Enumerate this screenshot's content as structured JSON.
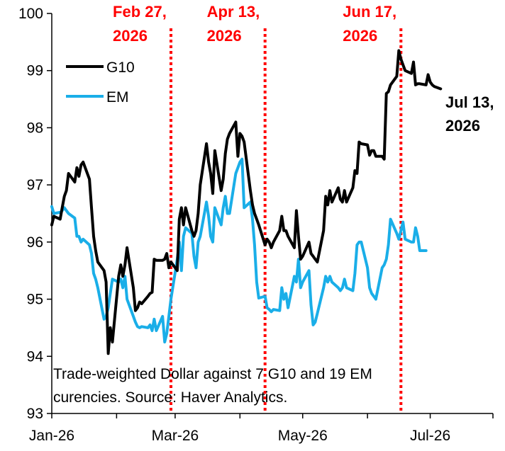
{
  "chart_data": {
    "type": "line",
    "title": "",
    "xlabel": "",
    "ylabel": "",
    "ylim": [
      93,
      100
    ],
    "xlim": [
      "2026-01-01",
      "2026-07-31"
    ],
    "y_ticks": [
      93,
      94,
      95,
      96,
      97,
      98,
      99,
      100
    ],
    "x_ticks": [
      {
        "date": "2026-01-01",
        "label": "Jan-26"
      },
      {
        "date": "2026-03-01",
        "label": "Mar-26"
      },
      {
        "date": "2026-05-01",
        "label": "May-26"
      },
      {
        "date": "2026-07-01",
        "label": "Jul-26"
      }
    ],
    "grid": false,
    "legend_position": "top-left",
    "colors": {
      "G10": "#000000",
      "EM": "#1aaee8",
      "event_line": "#ff0000"
    },
    "series": [
      {
        "name": "G10",
        "color": "#000000",
        "points": [
          [
            "2026-01-01",
            96.3
          ],
          [
            "2026-01-02",
            96.45
          ],
          [
            "2026-01-05",
            96.4
          ],
          [
            "2026-01-06",
            96.6
          ],
          [
            "2026-01-07",
            96.8
          ],
          [
            "2026-01-08",
            96.9
          ],
          [
            "2026-01-09",
            97.2
          ],
          [
            "2026-01-12",
            97.05
          ],
          [
            "2026-01-13",
            97.3
          ],
          [
            "2026-01-14",
            97.15
          ],
          [
            "2026-01-15",
            97.35
          ],
          [
            "2026-01-16",
            97.4
          ],
          [
            "2026-01-19",
            97.1
          ],
          [
            "2026-01-20",
            96.6
          ],
          [
            "2026-01-21",
            96.1
          ],
          [
            "2026-01-22",
            95.85
          ],
          [
            "2026-01-23",
            95.65
          ],
          [
            "2026-01-26",
            95.5
          ],
          [
            "2026-01-27",
            95.3
          ],
          [
            "2026-01-28",
            94.05
          ],
          [
            "2026-01-29",
            94.5
          ],
          [
            "2026-01-30",
            94.25
          ],
          [
            "2026-02-02",
            95.4
          ],
          [
            "2026-02-03",
            95.6
          ],
          [
            "2026-02-04",
            95.4
          ],
          [
            "2026-02-05",
            95.6
          ],
          [
            "2026-02-06",
            95.9
          ],
          [
            "2026-02-09",
            95.2
          ],
          [
            "2026-02-10",
            94.8
          ],
          [
            "2026-02-11",
            94.85
          ],
          [
            "2026-02-12",
            94.95
          ],
          [
            "2026-02-13",
            94.92
          ],
          [
            "2026-02-16",
            95.05
          ],
          [
            "2026-02-17",
            95.1
          ],
          [
            "2026-02-18",
            95.12
          ],
          [
            "2026-02-19",
            95.7
          ],
          [
            "2026-02-20",
            95.68
          ],
          [
            "2026-02-23",
            95.68
          ],
          [
            "2026-02-24",
            95.7
          ],
          [
            "2026-02-25",
            95.8
          ],
          [
            "2026-02-26",
            95.55
          ],
          [
            "2026-02-27",
            95.65
          ],
          [
            "2026-03-02",
            95.5
          ],
          [
            "2026-03-03",
            96.4
          ],
          [
            "2026-03-04",
            96.6
          ],
          [
            "2026-03-05",
            96.3
          ],
          [
            "2026-03-06",
            96.6
          ],
          [
            "2026-03-09",
            96.2
          ],
          [
            "2026-03-10",
            96.1
          ],
          [
            "2026-03-11",
            96.2
          ],
          [
            "2026-03-12",
            96.5
          ],
          [
            "2026-03-13",
            97.0
          ],
          [
            "2026-03-16",
            97.72
          ],
          [
            "2026-03-17",
            97.4
          ],
          [
            "2026-03-18",
            97.2
          ],
          [
            "2026-03-19",
            96.85
          ],
          [
            "2026-03-20",
            97.6
          ],
          [
            "2026-03-23",
            96.9
          ],
          [
            "2026-03-24",
            97.1
          ],
          [
            "2026-03-25",
            97.55
          ],
          [
            "2026-03-26",
            97.8
          ],
          [
            "2026-03-27",
            97.9
          ],
          [
            "2026-03-30",
            98.1
          ],
          [
            "2026-03-31",
            97.5
          ],
          [
            "2026-04-01",
            97.9
          ],
          [
            "2026-04-02",
            97.85
          ],
          [
            "2026-04-03",
            97.75
          ],
          [
            "2026-04-06",
            96.9
          ],
          [
            "2026-04-07",
            96.65
          ],
          [
            "2026-04-08",
            96.5
          ],
          [
            "2026-04-09",
            96.4
          ],
          [
            "2026-04-10",
            96.3
          ],
          [
            "2026-04-13",
            95.95
          ],
          [
            "2026-04-14",
            96.05
          ],
          [
            "2026-04-15",
            96.0
          ],
          [
            "2026-04-16",
            95.9
          ],
          [
            "2026-04-17",
            96.0
          ],
          [
            "2026-04-20",
            96.2
          ],
          [
            "2026-04-21",
            96.45
          ],
          [
            "2026-04-22",
            96.2
          ],
          [
            "2026-04-23",
            96.2
          ],
          [
            "2026-04-24",
            96.1
          ],
          [
            "2026-04-27",
            95.9
          ],
          [
            "2026-04-28",
            96.55
          ],
          [
            "2026-04-29",
            96.1
          ],
          [
            "2026-04-30",
            95.7
          ],
          [
            "2026-05-01",
            95.75
          ],
          [
            "2026-05-04",
            96.0
          ],
          [
            "2026-05-05",
            95.8
          ],
          [
            "2026-05-06",
            95.75
          ],
          [
            "2026-05-07",
            95.7
          ],
          [
            "2026-05-08",
            95.65
          ],
          [
            "2026-05-11",
            96.2
          ],
          [
            "2026-05-12",
            96.8
          ],
          [
            "2026-05-13",
            96.65
          ],
          [
            "2026-05-14",
            96.9
          ],
          [
            "2026-05-15",
            96.7
          ],
          [
            "2026-05-18",
            96.95
          ],
          [
            "2026-05-19",
            96.75
          ],
          [
            "2026-05-20",
            96.7
          ],
          [
            "2026-05-21",
            96.9
          ],
          [
            "2026-05-22",
            96.7
          ],
          [
            "2026-05-25",
            96.95
          ],
          [
            "2026-05-26",
            97.25
          ],
          [
            "2026-05-27",
            97.2
          ],
          [
            "2026-05-28",
            97.75
          ],
          [
            "2026-05-29",
            97.72
          ],
          [
            "2026-06-01",
            97.7
          ],
          [
            "2026-06-02",
            97.52
          ],
          [
            "2026-06-03",
            97.6
          ],
          [
            "2026-06-04",
            97.6
          ],
          [
            "2026-06-05",
            97.5
          ],
          [
            "2026-06-08",
            97.5
          ],
          [
            "2026-06-09",
            97.45
          ],
          [
            "2026-06-10",
            98.6
          ],
          [
            "2026-06-11",
            98.63
          ],
          [
            "2026-06-12",
            98.75
          ],
          [
            "2026-06-15",
            98.9
          ],
          [
            "2026-06-16",
            99.35
          ],
          [
            "2026-06-17",
            99.2
          ],
          [
            "2026-06-18",
            99.1
          ],
          [
            "2026-06-19",
            99.0
          ],
          [
            "2026-06-22",
            98.95
          ],
          [
            "2026-06-23",
            99.15
          ],
          [
            "2026-06-24",
            98.75
          ],
          [
            "2026-06-25",
            98.77
          ],
          [
            "2026-06-26",
            98.77
          ],
          [
            "2026-06-29",
            98.75
          ],
          [
            "2026-06-30",
            98.93
          ],
          [
            "2026-07-01",
            98.8
          ],
          [
            "2026-07-02",
            98.75
          ],
          [
            "2026-07-03",
            98.72
          ],
          [
            "2026-07-06",
            98.68
          ]
        ]
      },
      {
        "name": "EM",
        "color": "#1aaee8",
        "points": [
          [
            "2026-01-01",
            96.62
          ],
          [
            "2026-01-02",
            96.5
          ],
          [
            "2026-01-05",
            96.52
          ],
          [
            "2026-01-06",
            96.55
          ],
          [
            "2026-01-07",
            96.6
          ],
          [
            "2026-01-08",
            96.55
          ],
          [
            "2026-01-09",
            96.5
          ],
          [
            "2026-01-12",
            96.42
          ],
          [
            "2026-01-13",
            96.1
          ],
          [
            "2026-01-14",
            96.1
          ],
          [
            "2026-01-15",
            96.0
          ],
          [
            "2026-01-16",
            96.05
          ],
          [
            "2026-01-19",
            95.95
          ],
          [
            "2026-01-20",
            95.8
          ],
          [
            "2026-01-21",
            95.45
          ],
          [
            "2026-01-22",
            95.35
          ],
          [
            "2026-01-23",
            95.2
          ],
          [
            "2026-01-26",
            94.65
          ],
          [
            "2026-01-27",
            94.7
          ],
          [
            "2026-01-28",
            94.85
          ],
          [
            "2026-01-29",
            95.1
          ],
          [
            "2026-01-30",
            95.35
          ],
          [
            "2026-02-02",
            95.3
          ],
          [
            "2026-02-03",
            95.35
          ],
          [
            "2026-02-04",
            95.2
          ],
          [
            "2026-02-05",
            95.4
          ],
          [
            "2026-02-06",
            95.0
          ],
          [
            "2026-02-09",
            94.7
          ],
          [
            "2026-02-10",
            94.6
          ],
          [
            "2026-02-11",
            94.52
          ],
          [
            "2026-02-12",
            94.5
          ],
          [
            "2026-02-13",
            94.52
          ],
          [
            "2026-02-16",
            94.5
          ],
          [
            "2026-02-17",
            94.55
          ],
          [
            "2026-02-18",
            94.45
          ],
          [
            "2026-02-19",
            94.65
          ],
          [
            "2026-02-20",
            94.45
          ],
          [
            "2026-02-23",
            94.7
          ],
          [
            "2026-02-24",
            94.25
          ],
          [
            "2026-02-25",
            94.4
          ],
          [
            "2026-02-26",
            94.7
          ],
          [
            "2026-02-27",
            95.0
          ],
          [
            "2026-03-02",
            95.7
          ],
          [
            "2026-03-03",
            96.0
          ],
          [
            "2026-03-04",
            95.5
          ],
          [
            "2026-03-05",
            96.1
          ],
          [
            "2026-03-06",
            96.25
          ],
          [
            "2026-03-09",
            96.15
          ],
          [
            "2026-03-10",
            95.75
          ],
          [
            "2026-03-11",
            95.55
          ],
          [
            "2026-03-12",
            96.0
          ],
          [
            "2026-03-13",
            96.1
          ],
          [
            "2026-03-16",
            96.7
          ],
          [
            "2026-03-17",
            96.45
          ],
          [
            "2026-03-18",
            96.1
          ],
          [
            "2026-03-19",
            96.0
          ],
          [
            "2026-03-20",
            96.6
          ],
          [
            "2026-03-23",
            96.3
          ],
          [
            "2026-03-24",
            96.6
          ],
          [
            "2026-03-25",
            96.8
          ],
          [
            "2026-03-26",
            96.5
          ],
          [
            "2026-03-27",
            96.5
          ],
          [
            "2026-03-30",
            97.2
          ],
          [
            "2026-03-31",
            97.3
          ],
          [
            "2026-04-01",
            97.4
          ],
          [
            "2026-04-02",
            97.45
          ],
          [
            "2026-04-03",
            96.6
          ],
          [
            "2026-04-06",
            96.7
          ],
          [
            "2026-04-07",
            96.4
          ],
          [
            "2026-04-08",
            95.95
          ],
          [
            "2026-04-09",
            95.3
          ],
          [
            "2026-04-10",
            95.02
          ],
          [
            "2026-04-13",
            95.05
          ],
          [
            "2026-04-14",
            94.85
          ],
          [
            "2026-04-15",
            94.82
          ],
          [
            "2026-04-16",
            94.78
          ],
          [
            "2026-04-17",
            94.82
          ],
          [
            "2026-04-20",
            94.8
          ],
          [
            "2026-04-21",
            95.2
          ],
          [
            "2026-04-22",
            95.0
          ],
          [
            "2026-04-23",
            95.1
          ],
          [
            "2026-04-24",
            94.85
          ],
          [
            "2026-04-27",
            95.4
          ],
          [
            "2026-04-28",
            95.3
          ],
          [
            "2026-04-29",
            95.7
          ],
          [
            "2026-04-30",
            95.2
          ],
          [
            "2026-05-01",
            95.3
          ],
          [
            "2026-05-04",
            95.5
          ],
          [
            "2026-05-05",
            94.9
          ],
          [
            "2026-05-06",
            94.55
          ],
          [
            "2026-05-07",
            94.6
          ],
          [
            "2026-05-08",
            94.75
          ],
          [
            "2026-05-11",
            95.2
          ],
          [
            "2026-05-12",
            95.4
          ],
          [
            "2026-05-13",
            95.3
          ],
          [
            "2026-05-14",
            95.4
          ],
          [
            "2026-05-15",
            95.3
          ],
          [
            "2026-05-18",
            95.2
          ],
          [
            "2026-05-19",
            95.15
          ],
          [
            "2026-05-20",
            95.2
          ],
          [
            "2026-05-21",
            95.35
          ],
          [
            "2026-05-22",
            95.2
          ],
          [
            "2026-05-25",
            95.15
          ],
          [
            "2026-05-26",
            95.45
          ],
          [
            "2026-05-27",
            95.95
          ],
          [
            "2026-05-28",
            96.0
          ],
          [
            "2026-05-29",
            96.0
          ],
          [
            "2026-06-01",
            95.55
          ],
          [
            "2026-06-02",
            95.2
          ],
          [
            "2026-06-03",
            95.1
          ],
          [
            "2026-06-04",
            95.05
          ],
          [
            "2026-06-05",
            95.0
          ],
          [
            "2026-06-08",
            95.55
          ],
          [
            "2026-06-09",
            95.6
          ],
          [
            "2026-06-10",
            95.7
          ],
          [
            "2026-06-11",
            95.95
          ],
          [
            "2026-06-12",
            96.4
          ],
          [
            "2026-06-15",
            96.15
          ],
          [
            "2026-06-16",
            96.05
          ],
          [
            "2026-06-17",
            96.2
          ],
          [
            "2026-06-18",
            96.35
          ],
          [
            "2026-06-19",
            96.05
          ],
          [
            "2026-06-22",
            96.0
          ],
          [
            "2026-06-23",
            96.0
          ],
          [
            "2026-06-24",
            96.25
          ],
          [
            "2026-06-25",
            96.1
          ],
          [
            "2026-06-26",
            95.85
          ],
          [
            "2026-06-29",
            95.85
          ]
        ]
      }
    ],
    "event_lines": [
      {
        "date": "2026-02-27",
        "label_line1": "Feb 27,",
        "label_line2": "2026"
      },
      {
        "date": "2026-04-13",
        "label_line1": "Apr 13,",
        "label_line2": "2026"
      },
      {
        "date": "2026-06-17",
        "label_line1": "Jun 17,",
        "label_line2": "2026"
      }
    ],
    "end_label": {
      "line1": "Jul 13,",
      "line2": "2026"
    },
    "note_line1": "Trade-weighted Dollar against 7 G10 and 19 EM",
    "note_line2": "curencies. Source: Haver Analytics."
  }
}
